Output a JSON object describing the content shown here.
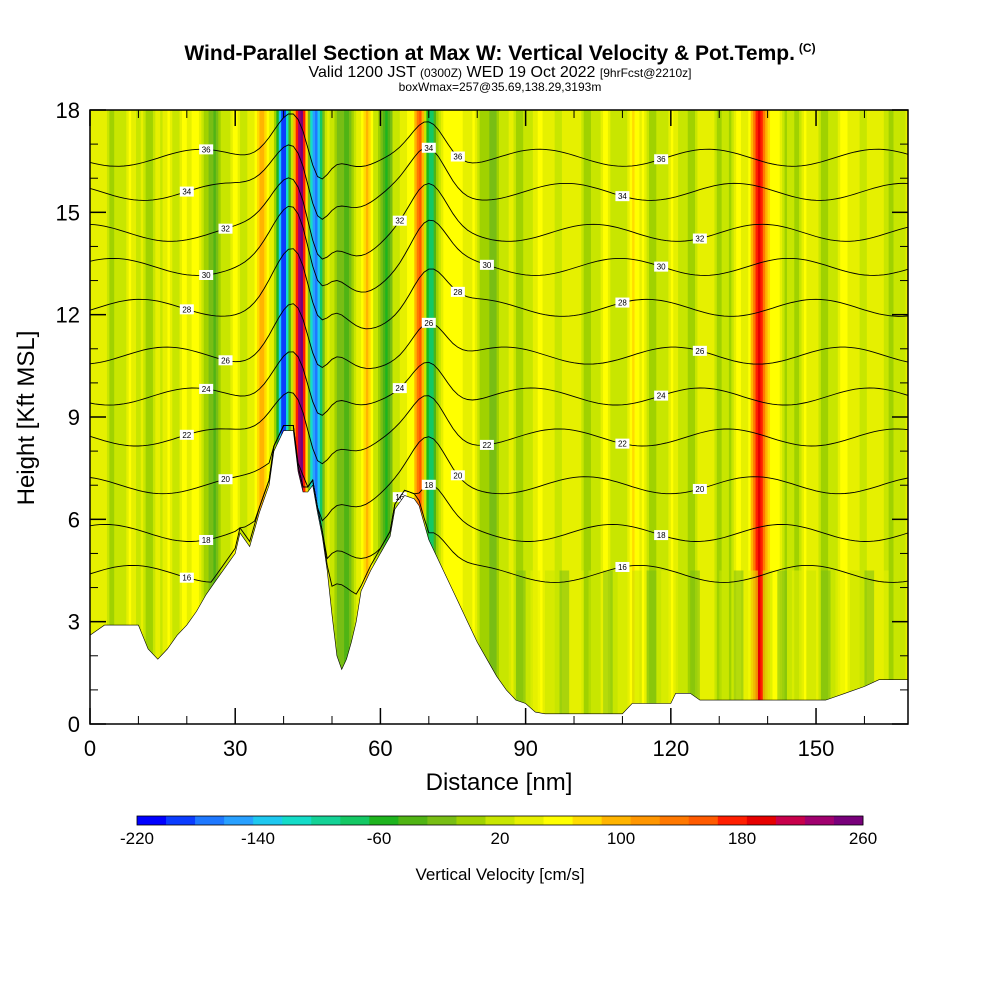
{
  "title": "Wind-Parallel Section at Max W: Vertical Velocity & Pot.Temp.",
  "title_mark": "(C)",
  "subtitle_a": "Valid 1200 JST",
  "subtitle_b": "(0300Z)",
  "subtitle_c": "WED 19 Oct 2022",
  "subtitle_d": "[9hrFcst@2210z]",
  "subtitle2": "boxWmax=257@35.69,138.29,3193m",
  "chart_data": {
    "type": "heatmap",
    "xlabel": "Distance [nm]",
    "ylabel": "Height [Kft MSL]",
    "xlim": [
      0,
      169
    ],
    "ylim": [
      0,
      18
    ],
    "xticks": [
      0,
      30,
      60,
      90,
      120,
      150
    ],
    "yticks": [
      0,
      3,
      6,
      9,
      12,
      15,
      18
    ],
    "colorbar": {
      "label": "Vertical Velocity [cm/s]",
      "min": -220,
      "max": 260,
      "step": 20,
      "tick_values": [
        -220,
        -140,
        -60,
        20,
        100,
        180,
        260
      ],
      "colors": [
        "#0000ff",
        "#0a3cff",
        "#1e78ff",
        "#28a0ff",
        "#1ec8f0",
        "#14dcc8",
        "#14d296",
        "#14c864",
        "#1eb41e",
        "#50b414",
        "#78be14",
        "#a0d200",
        "#c8e600",
        "#e6f000",
        "#ffff00",
        "#ffdc00",
        "#ffb400",
        "#ff9600",
        "#ff7800",
        "#ff5a00",
        "#ff1e00",
        "#e60000",
        "#c8004b",
        "#a0006e",
        "#78007a"
      ]
    },
    "terrain_profile": [
      [
        0,
        2.6
      ],
      [
        3,
        2.9
      ],
      [
        10,
        2.9
      ],
      [
        12,
        2.2
      ],
      [
        14,
        1.9
      ],
      [
        16,
        2.2
      ],
      [
        18,
        2.6
      ],
      [
        20,
        2.9
      ],
      [
        22,
        3.3
      ],
      [
        24,
        3.8
      ],
      [
        26,
        4.2
      ],
      [
        28,
        4.6
      ],
      [
        30,
        5.0
      ],
      [
        31,
        5.6
      ],
      [
        33,
        5.2
      ],
      [
        35,
        6.2
      ],
      [
        37,
        7.0
      ],
      [
        38,
        8.0
      ],
      [
        40,
        8.6
      ],
      [
        42,
        8.6
      ],
      [
        43,
        7.4
      ],
      [
        44,
        6.8
      ],
      [
        45,
        6.8
      ],
      [
        46,
        7.0
      ],
      [
        47,
        6.2
      ],
      [
        48,
        5.5
      ],
      [
        49,
        4.5
      ],
      [
        50,
        3.2
      ],
      [
        51,
        2.0
      ],
      [
        52,
        1.6
      ],
      [
        53,
        1.9
      ],
      [
        54,
        2.4
      ],
      [
        55,
        3.0
      ],
      [
        56,
        3.9
      ],
      [
        58,
        4.5
      ],
      [
        60,
        5.0
      ],
      [
        62,
        5.5
      ],
      [
        63,
        6.3
      ],
      [
        65,
        6.7
      ],
      [
        67,
        6.6
      ],
      [
        68,
        6.4
      ],
      [
        70,
        5.4
      ],
      [
        72,
        4.8
      ],
      [
        74,
        4.2
      ],
      [
        76,
        3.6
      ],
      [
        78,
        3.0
      ],
      [
        80,
        2.4
      ],
      [
        82,
        1.9
      ],
      [
        84,
        1.4
      ],
      [
        86,
        1.0
      ],
      [
        88,
        0.7
      ],
      [
        90,
        0.6
      ],
      [
        92,
        0.35
      ],
      [
        94,
        0.3
      ],
      [
        100,
        0.3
      ],
      [
        110,
        0.3
      ],
      [
        112,
        0.6
      ],
      [
        115,
        0.6
      ],
      [
        120,
        0.6
      ],
      [
        121,
        0.9
      ],
      [
        124,
        0.9
      ],
      [
        126,
        0.7
      ],
      [
        140,
        0.7
      ],
      [
        146,
        0.7
      ],
      [
        152,
        0.7
      ],
      [
        156,
        0.9
      ],
      [
        160,
        1.1
      ],
      [
        163,
        1.3
      ],
      [
        169,
        1.3
      ]
    ],
    "potential_temperature_isentropes": [
      {
        "label": "16",
        "level": 4.4
      },
      {
        "label": "18",
        "level": 5.6
      },
      {
        "label": "20",
        "level": 7.0
      },
      {
        "label": "22",
        "level": 8.4
      },
      {
        "label": "24",
        "level": 9.6
      },
      {
        "label": "26",
        "level": 10.8
      },
      {
        "label": "28",
        "level": 12.2
      },
      {
        "label": "30",
        "level": 13.4
      },
      {
        "label": "32",
        "level": 14.4
      },
      {
        "label": "34",
        "level": 15.6
      },
      {
        "label": "36",
        "level": 16.6
      }
    ],
    "updraft_bands": [
      {
        "x": 43.5,
        "w": 200
      },
      {
        "x": 68,
        "w": 140
      },
      {
        "x": 75,
        "w": 60
      },
      {
        "x": 138,
        "w": 180
      },
      {
        "x": 20,
        "w": 40
      },
      {
        "x": 35,
        "w": 60
      },
      {
        "x": 57,
        "w": 40
      },
      {
        "x": 95,
        "w": 30
      },
      {
        "x": 112,
        "w": 30
      },
      {
        "x": 140,
        "w": 40
      },
      {
        "x": 158,
        "w": 30
      }
    ],
    "downdraft_bands": [
      {
        "x": 40,
        "w": -200
      },
      {
        "x": 46.5,
        "w": -190
      },
      {
        "x": 70.5,
        "w": -120
      },
      {
        "x": 25,
        "w": -40
      },
      {
        "x": 52,
        "w": -60
      },
      {
        "x": 61,
        "w": -50
      },
      {
        "x": 84,
        "w": -30
      }
    ]
  }
}
